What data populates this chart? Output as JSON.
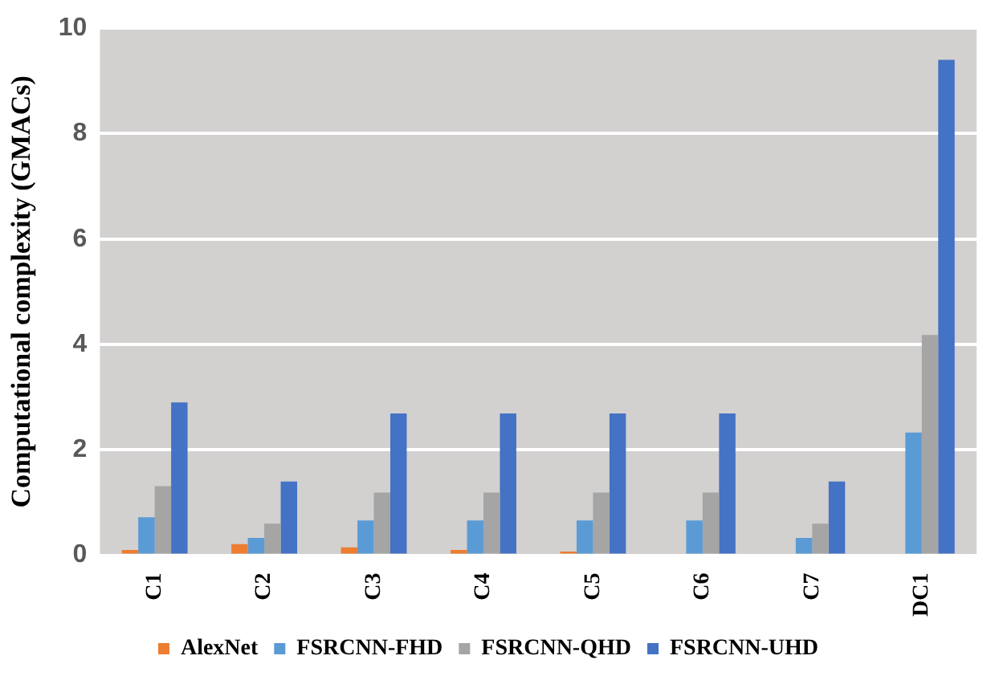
{
  "chart_data": {
    "type": "bar",
    "ylabel": "Computational complexity (GMACs)",
    "categories": [
      "C1",
      "C2",
      "C3",
      "C4",
      "C5",
      "C6",
      "C7",
      "DC1"
    ],
    "series": [
      {
        "name": "AlexNet",
        "color": "#ed7d31",
        "values": [
          0.1,
          0.21,
          0.15,
          0.1,
          0.07,
          0,
          0,
          0
        ]
      },
      {
        "name": "FSRCNN-FHD",
        "color": "#5b9bd5",
        "values": [
          0.72,
          0.33,
          0.66,
          0.66,
          0.66,
          0.66,
          0.33,
          2.33
        ]
      },
      {
        "name": "FSRCNN-QHD",
        "color": "#a5a5a5",
        "values": [
          1.31,
          0.6,
          1.19,
          1.19,
          1.19,
          1.19,
          0.6,
          4.18
        ]
      },
      {
        "name": "FSRCNN-UHD",
        "color": "#4472c4",
        "values": [
          2.9,
          1.4,
          2.69,
          2.69,
          2.69,
          2.69,
          1.4,
          9.4
        ]
      }
    ],
    "ylim": [
      0,
      10
    ],
    "yticks": [
      0,
      2,
      4,
      6,
      8,
      10
    ],
    "grid": "y",
    "legend": "bottom"
  }
}
